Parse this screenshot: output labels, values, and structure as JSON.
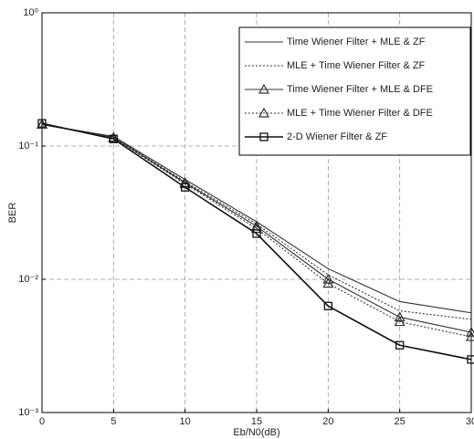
{
  "chart_data": {
    "type": "line",
    "xlabel": "Eb/N0(dB)",
    "ylabel": "BER",
    "x": [
      0,
      5,
      10,
      15,
      20,
      25,
      30
    ],
    "xlim": [
      0,
      30
    ],
    "xticks": [
      0,
      5,
      10,
      15,
      20,
      25,
      30
    ],
    "ylim": [
      0.001,
      1
    ],
    "log_y": true,
    "yticks": [
      {
        "value": 0.001,
        "label": "10⁻³"
      },
      {
        "value": 0.01,
        "label": "10⁻²"
      },
      {
        "value": 0.1,
        "label": "10⁻¹"
      },
      {
        "value": 1,
        "label": "10⁰"
      }
    ],
    "grid": true,
    "legend": "upper right",
    "series": [
      {
        "name": "Time Wiener Filter + MLE & ZF",
        "color": "#333333",
        "style": "solid",
        "marker": "none",
        "values": [
          0.145,
          0.118,
          0.056,
          0.027,
          0.012,
          0.0068,
          0.0056
        ]
      },
      {
        "name": "MLE + Time Wiener Filter & ZF",
        "color": "#333333",
        "style": "dotted",
        "marker": "none",
        "values": [
          0.145,
          0.117,
          0.054,
          0.026,
          0.0108,
          0.0058,
          0.005
        ]
      },
      {
        "name": "Time Wiener Filter + MLE & DFE",
        "color": "#333333",
        "style": "solid",
        "marker": "triangle",
        "values": [
          0.145,
          0.116,
          0.053,
          0.025,
          0.01,
          0.0052,
          0.004
        ]
      },
      {
        "name": "MLE + Time Wiener Filter & DFE",
        "color": "#333333",
        "style": "dotted",
        "marker": "triangle",
        "values": [
          0.145,
          0.115,
          0.052,
          0.024,
          0.0093,
          0.0048,
          0.0037
        ]
      },
      {
        "name": "2-D Wiener Filter & ZF",
        "color": "#111111",
        "style": "solid",
        "marker": "square",
        "values": [
          0.148,
          0.113,
          0.049,
          0.022,
          0.0063,
          0.0032,
          0.0025
        ]
      }
    ]
  }
}
